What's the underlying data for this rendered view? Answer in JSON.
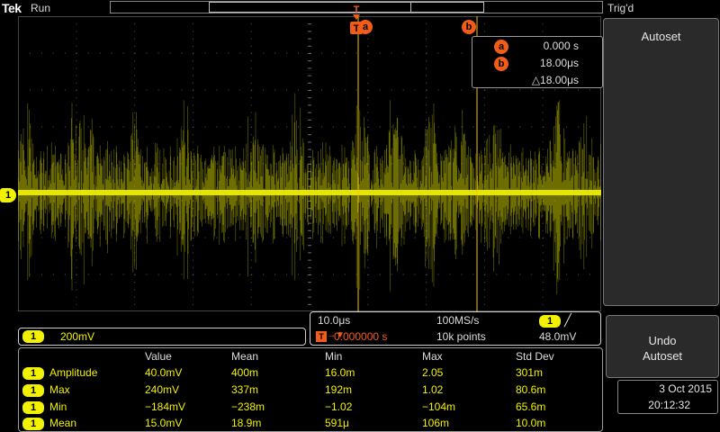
{
  "topbar": {
    "brand": "Tek",
    "run_status": "Run",
    "trigger_status": "Trig'd"
  },
  "channel": {
    "label": "1",
    "color": "#f2f200",
    "scale": "200mV"
  },
  "cursors": {
    "a_label": "a",
    "b_label": "b",
    "a_time": "0.000 s",
    "b_time": "18.00μs",
    "delta": "△18.00μs",
    "color": "#f25c19"
  },
  "trigger": {
    "marker_label": "T"
  },
  "horizontal": {
    "timebase": "10.0μs",
    "sample_rate": "100MS/s",
    "trigger_position": "0.000000 s",
    "record_length": "10k points",
    "trigger_source": "1",
    "trigger_slope": "╱",
    "trigger_level": "48.0mV"
  },
  "side_menu": {
    "autoset_title": "Autoset",
    "undo_line1": "Undo",
    "undo_line2": "Autoset"
  },
  "datetime": {
    "date": "3 Oct  2015",
    "time": "20:12:32"
  },
  "measurements": {
    "headers": [
      "Value",
      "Mean",
      "Min",
      "Max",
      "Std Dev"
    ],
    "rows": [
      {
        "channel": "1",
        "name": "Amplitude",
        "value": "40.0mV",
        "mean": "400m",
        "min": "16.0m",
        "max": "2.05",
        "std": "301m"
      },
      {
        "channel": "1",
        "name": "Max",
        "value": "240mV",
        "mean": "337m",
        "min": "192m",
        "max": "1.02",
        "std": "80.6m"
      },
      {
        "channel": "1",
        "name": "Min",
        "value": "−184mV",
        "mean": "−238m",
        "min": "−1.02",
        "max": "−104m",
        "std": "65.6m"
      },
      {
        "channel": "1",
        "name": "Mean",
        "value": "15.0mV",
        "mean": "18.9m",
        "min": "591μ",
        "max": "106m",
        "std": "10.0m"
      }
    ]
  }
}
